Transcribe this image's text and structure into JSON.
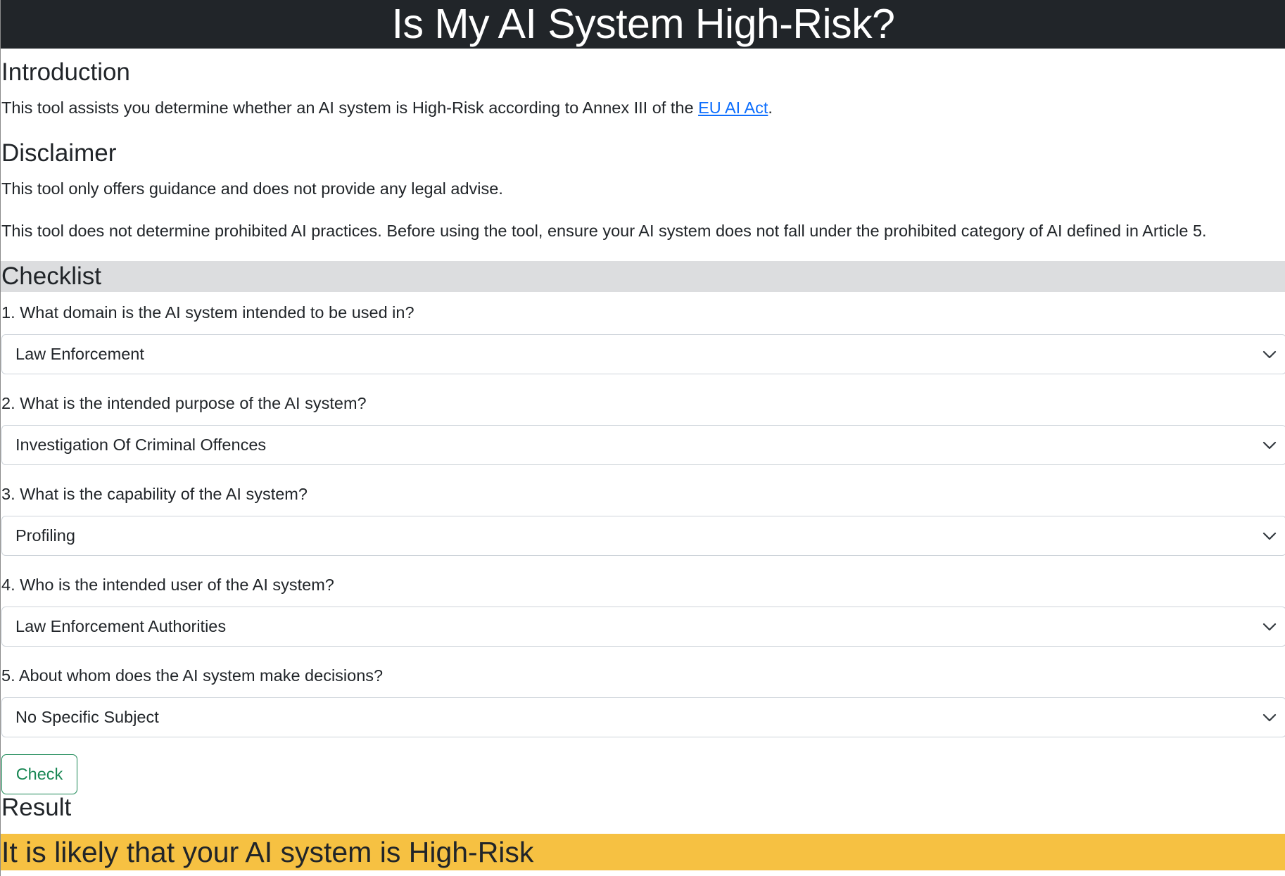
{
  "header": {
    "title": "Is My AI System High-Risk?"
  },
  "introduction": {
    "heading": "Introduction",
    "text_before_link": "This tool assists you determine whether an AI system is High-Risk according to Annex III of the ",
    "link_text": "EU AI Act",
    "text_after_link": "."
  },
  "disclaimer": {
    "heading": "Disclaimer",
    "paragraphs": [
      "This tool only offers guidance and does not provide any legal advise.",
      "This tool does not determine prohibited AI practices. Before using the tool, ensure your AI system does not fall under the prohibited category of AI defined in Article 5."
    ]
  },
  "checklist": {
    "heading": "Checklist",
    "questions": [
      {
        "label": "1. What domain is the AI system intended to be used in?",
        "selected": "Law Enforcement"
      },
      {
        "label": "2. What is the intended purpose of the AI system?",
        "selected": "Investigation Of Criminal Offences"
      },
      {
        "label": "3. What is the capability of the AI system?",
        "selected": "Profiling"
      },
      {
        "label": "4. Who is the intended user of the AI system?",
        "selected": "Law Enforcement Authorities"
      },
      {
        "label": "5. About whom does the AI system make decisions?",
        "selected": "No Specific Subject"
      }
    ],
    "check_button": "Check"
  },
  "result": {
    "heading": "Result",
    "message": "It is likely that your AI system is High-Risk"
  },
  "colors": {
    "header_bg": "#212529",
    "checklist_bar_bg": "#dcdddf",
    "result_bg": "#f6c142",
    "link": "#0d6efd",
    "button_outline": "#198754"
  },
  "icons": {
    "select_indicator": "chevron-down-icon"
  }
}
